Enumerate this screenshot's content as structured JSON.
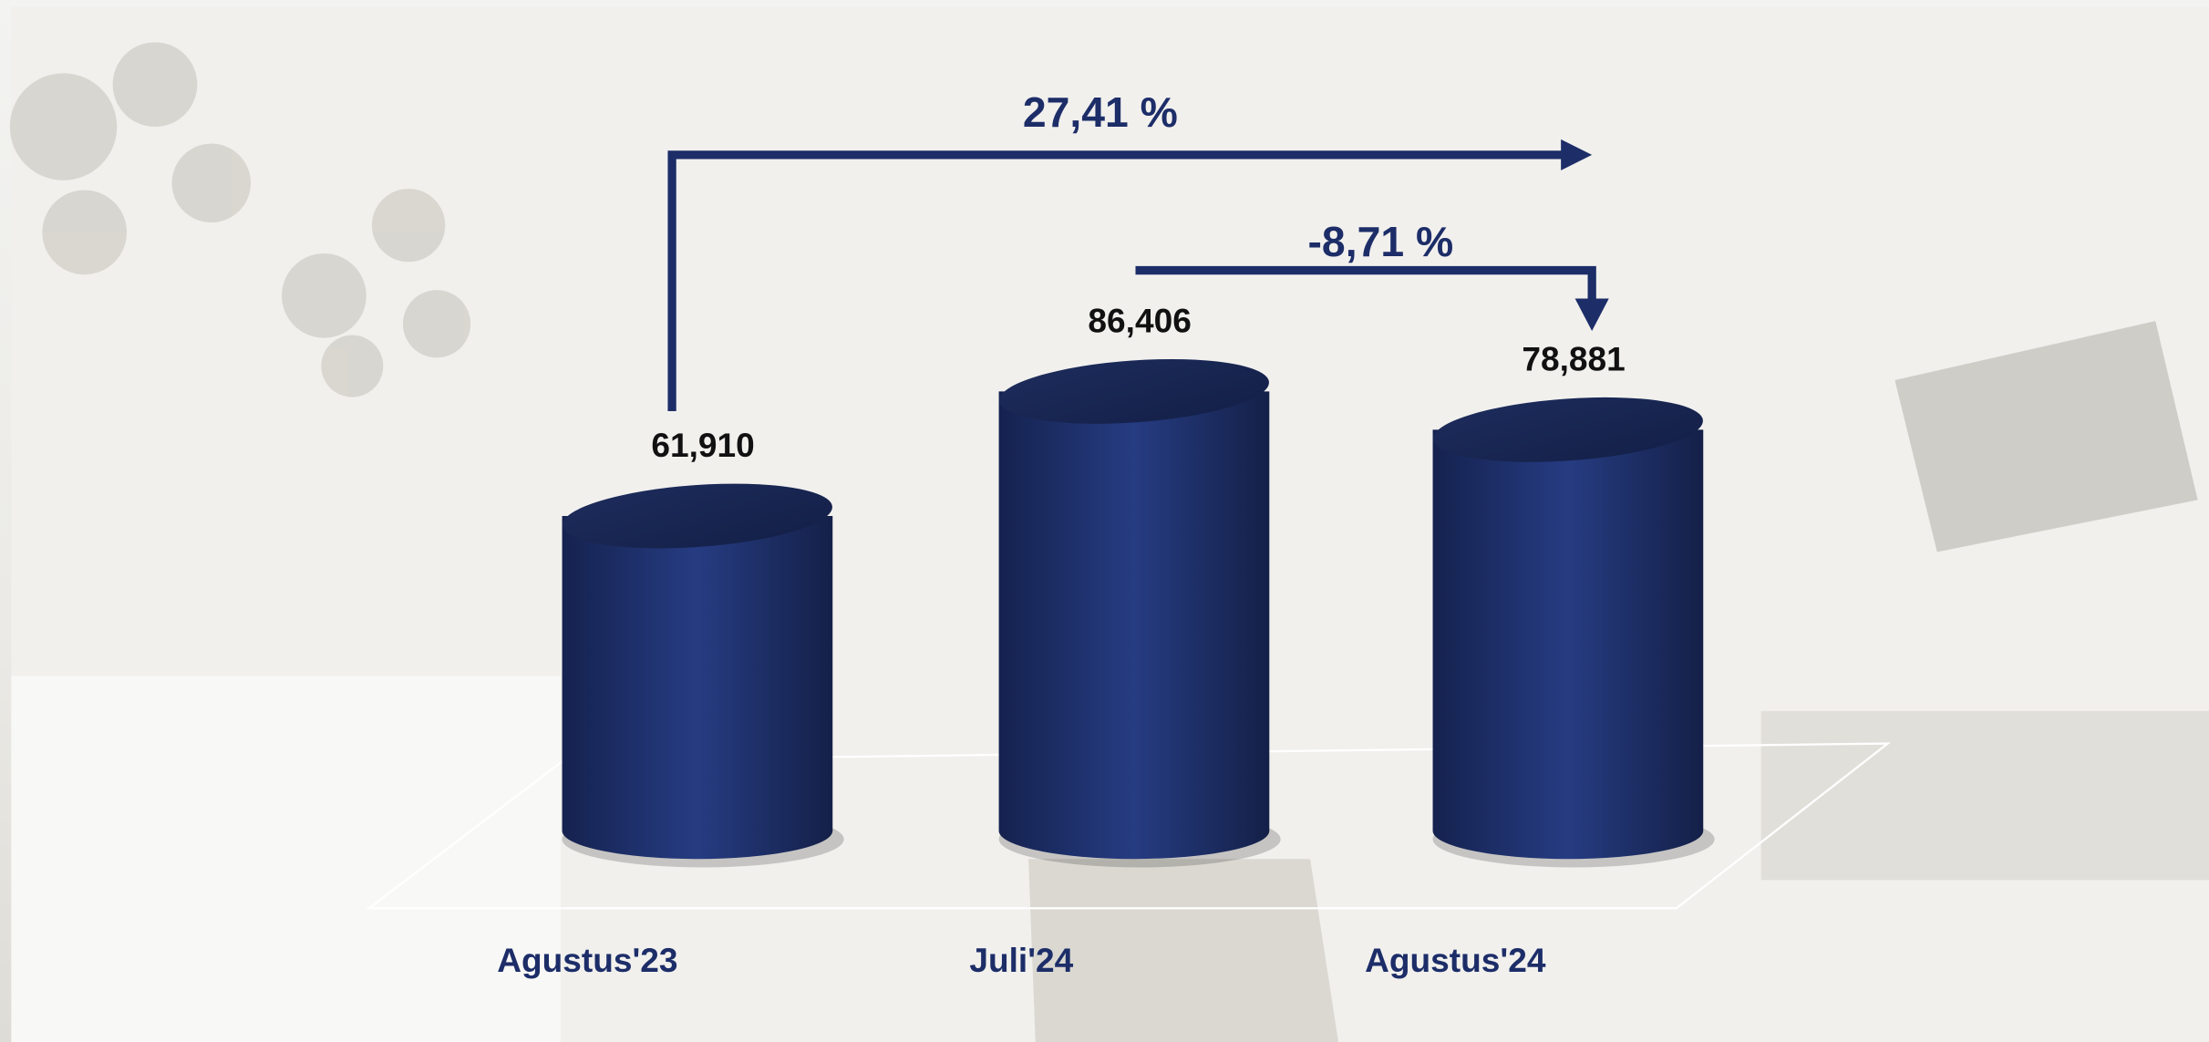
{
  "chart_data": {
    "type": "bar",
    "categories": [
      "Agustus'23",
      "Juli'24",
      "Agustus'24"
    ],
    "values": [
      61910,
      86406,
      78881
    ],
    "value_labels": [
      "61,910",
      "86,406",
      "78,881"
    ],
    "color": "#1c2d68",
    "annotations": [
      "27,41 %",
      "-8,71 %"
    ]
  }
}
